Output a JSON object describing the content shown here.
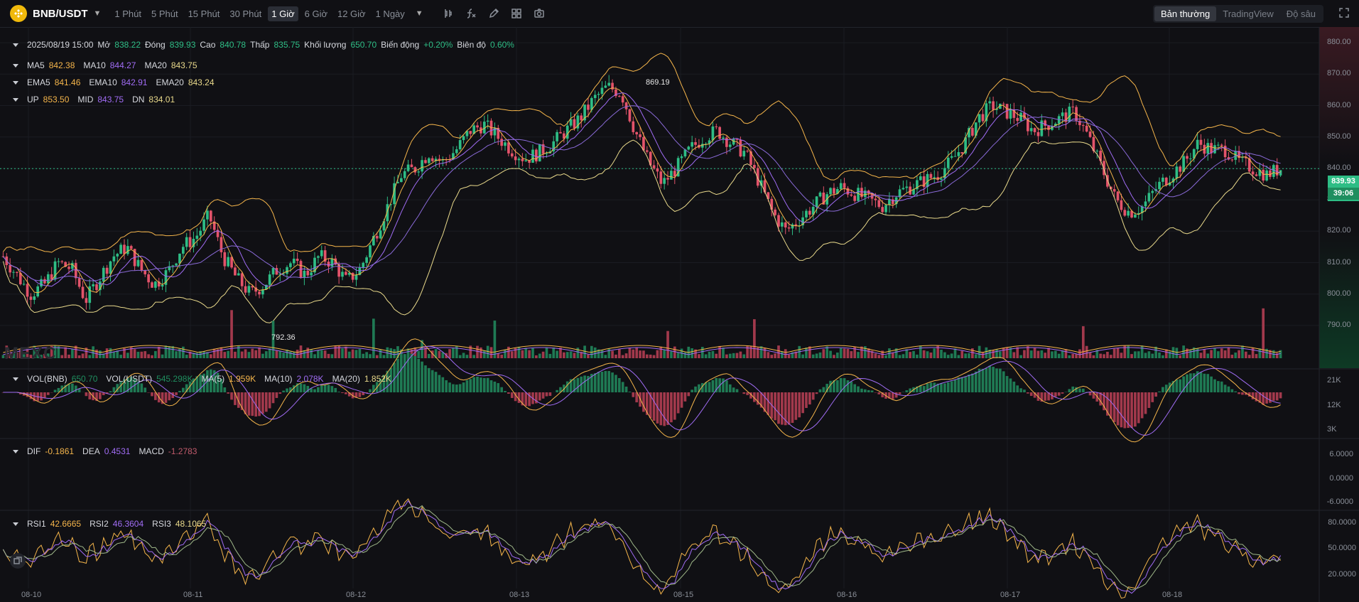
{
  "header": {
    "pair": "BNB/USDT",
    "timeframes": [
      "1 Phút",
      "5 Phút",
      "15 Phút",
      "30 Phút",
      "1 Giờ",
      "6 Giờ",
      "12 Giờ",
      "1 Ngày"
    ],
    "active_timeframe": "1 Giờ",
    "views": [
      "Bản thường",
      "TradingView",
      "Độ sâu"
    ],
    "active_view": "Bản thường"
  },
  "ohlc": {
    "date": "2025/08/19 15:00",
    "open_label": "Mở",
    "open": "838.22",
    "high_label": "Cao",
    "high": "840.78",
    "low_label": "Thấp",
    "low": "835.75",
    "close_label": "Đóng",
    "close": "839.93",
    "vol_label": "Khối lượng",
    "vol": "650.70",
    "change_label": "Biến động",
    "change": "+0.20%",
    "amp_label": "Biên độ",
    "amp": "0.60%"
  },
  "ma": {
    "ma5_label": "MA5",
    "ma5": "842.38",
    "ma10_label": "MA10",
    "ma10": "844.27",
    "ma20_label": "MA20",
    "ma20": "843.75"
  },
  "ema": {
    "ema5_label": "EMA5",
    "ema5": "841.46",
    "ema10_label": "EMA10",
    "ema10": "842.91",
    "ema20_label": "EMA20",
    "ema20": "843.24"
  },
  "boll": {
    "up_label": "UP",
    "up": "853.50",
    "mid_label": "MID",
    "mid": "843.75",
    "dn_label": "DN",
    "dn": "834.01"
  },
  "volume": {
    "bnb_label": "VOL(BNB)",
    "bnb": "650.70",
    "usdt_label": "VOL(USDT)",
    "usdt": "545.298K",
    "ma5_label": "MA(5)",
    "ma5": "1.959K",
    "ma10_label": "MA(10)",
    "ma10": "2.078K",
    "ma20_label": "MA(20)",
    "ma20": "1.852K"
  },
  "macd": {
    "dif_label": "DIF",
    "dif": "-0.1861",
    "dea_label": "DEA",
    "dea": "0.4531",
    "macd_label": "MACD",
    "macd": "-1.2783"
  },
  "rsi": {
    "rsi1_label": "RSI1",
    "rsi1": "42.6665",
    "rsi2_label": "RSI2",
    "rsi2": "46.3604",
    "rsi3_label": "RSI3",
    "rsi3": "48.1065"
  },
  "price_axis": [
    "880.00",
    "870.00",
    "860.00",
    "850.00",
    "840.00",
    "830.00",
    "820.00",
    "810.00",
    "800.00",
    "790.00"
  ],
  "current_price": "839.93",
  "countdown": "39:06",
  "max_label": "869.19",
  "min_label": "792.36",
  "vol_axis": [
    "21K",
    "12K",
    "3K"
  ],
  "macd_axis": [
    "6.0000",
    "0.0000",
    "-6.0000"
  ],
  "rsi_axis": [
    "80.0000",
    "50.0000",
    "20.0000"
  ],
  "date_axis": [
    "08-10",
    "08-11",
    "08-12",
    "08-13",
    "08-15",
    "08-16",
    "08-17",
    "08-18"
  ],
  "watermark": "MEXC",
  "colors": {
    "up": "#2ebd85",
    "down": "#e3536a",
    "ma5": "#f5b54b",
    "ma10": "#a06cf4",
    "ma20": "#e9d98b"
  },
  "chart_data": {
    "type": "candlestick",
    "close_path": [
      812,
      806,
      800,
      803,
      810,
      808,
      798,
      805,
      812,
      815,
      808,
      803,
      807,
      815,
      818,
      825,
      812,
      805,
      800,
      803,
      808,
      810,
      806,
      812,
      810,
      804,
      808,
      818,
      828,
      838,
      840,
      845,
      842,
      846,
      852,
      854,
      850,
      846,
      843,
      845,
      848,
      852,
      856,
      862,
      866,
      864,
      852,
      842,
      835,
      840,
      846,
      850,
      852,
      848,
      845,
      836,
      826,
      820,
      824,
      828,
      832,
      834,
      832,
      830,
      828,
      832,
      834,
      836,
      838,
      842,
      848,
      856,
      860,
      858,
      856,
      852,
      854,
      856,
      858,
      850,
      840,
      830,
      826,
      828,
      834,
      838,
      842,
      848,
      846,
      846,
      842,
      840,
      838,
      840
    ]
  }
}
